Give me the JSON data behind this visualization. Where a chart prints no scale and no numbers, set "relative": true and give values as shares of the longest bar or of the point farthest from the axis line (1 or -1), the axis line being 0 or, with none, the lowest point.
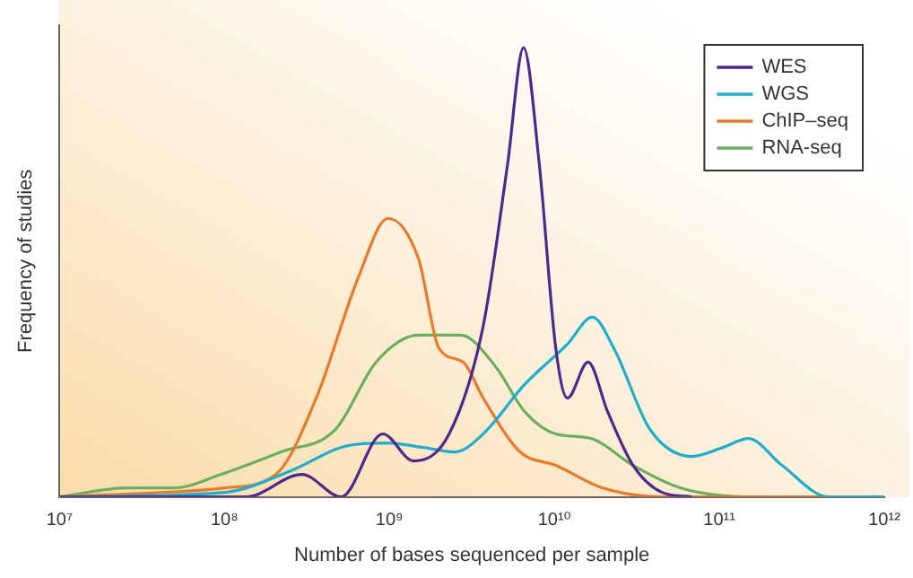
{
  "chart_data": {
    "type": "line",
    "relative": true,
    "xlabel": "Number of bases sequenced per sample",
    "ylabel": "Frequency of studies",
    "log": "x",
    "xlim": [
      10000000,
      1000000000000
    ],
    "xticks": [
      {
        "value": 10000000,
        "label": "10⁷"
      },
      {
        "value": 100000000,
        "label": "10⁸"
      },
      {
        "value": 1000000000,
        "label": "10⁹"
      },
      {
        "value": 10000000000,
        "label": "10¹⁰"
      },
      {
        "value": 100000000000,
        "label": "10¹¹"
      },
      {
        "value": 1000000000000,
        "label": "10¹²"
      }
    ],
    "legend": "top right",
    "marker": "none",
    "grid": false,
    "series": [
      {
        "name": "WES",
        "color": "#4b2a8c",
        "x": [
          10000000,
          135000000,
          295000000,
          510000000,
          910000000,
          1400000000,
          2300000000,
          3700000000,
          5200000000,
          6500000000,
          8100000000,
          10200000000,
          12000000000,
          16000000000,
          21000000000,
          30000000000,
          45000000000,
          68000000000
        ],
        "values": [
          0,
          0,
          0.05,
          0,
          0.14,
          0.08,
          0.14,
          0.38,
          0.74,
          1,
          0.74,
          0.33,
          0.22,
          0.3,
          0.19,
          0.07,
          0.01,
          0
        ]
      },
      {
        "name": "WGS",
        "color": "#1eaecc",
        "x": [
          10000000,
          100000000,
          260000000,
          510000000,
          980000000,
          1600000000,
          2500000000,
          3700000000,
          6600000000,
          12000000000,
          17000000000,
          23000000000,
          38000000000,
          68000000000,
          105000000000,
          150000000000,
          240000000000,
          460000000000,
          1000000000000
        ],
        "values": [
          0,
          0.01,
          0.06,
          0.11,
          0.12,
          0.11,
          0.1,
          0.14,
          0.25,
          0.34,
          0.4,
          0.33,
          0.15,
          0.09,
          0.11,
          0.13,
          0.07,
          0,
          0
        ]
      },
      {
        "name": "ChIP–seq",
        "color": "#e87a2a",
        "x": [
          10000000,
          100000000,
          205000000,
          360000000,
          650000000,
          980000000,
          1500000000,
          2000000000,
          2800000000,
          3700000000,
          6200000000,
          10200000000,
          19500000000,
          45000000000,
          1000000000000
        ],
        "values": [
          0,
          0.02,
          0.05,
          0.22,
          0.49,
          0.62,
          0.53,
          0.33,
          0.3,
          0.22,
          0.1,
          0.07,
          0.02,
          0,
          0
        ]
      },
      {
        "name": "RNA-seq",
        "color": "#6aaf5e",
        "x": [
          10000000,
          26000000,
          50000000,
          95000000,
          220000000,
          470000000,
          830000000,
          1500000000,
          2700000000,
          4400000000,
          6600000000,
          10200000000,
          16600000000,
          30000000000,
          58000000000,
          160000000000,
          1000000000000
        ],
        "values": [
          0,
          0.02,
          0.02,
          0.05,
          0.1,
          0.15,
          0.3,
          0.36,
          0.36,
          0.29,
          0.19,
          0.14,
          0.13,
          0.07,
          0.02,
          0,
          0
        ]
      }
    ]
  }
}
